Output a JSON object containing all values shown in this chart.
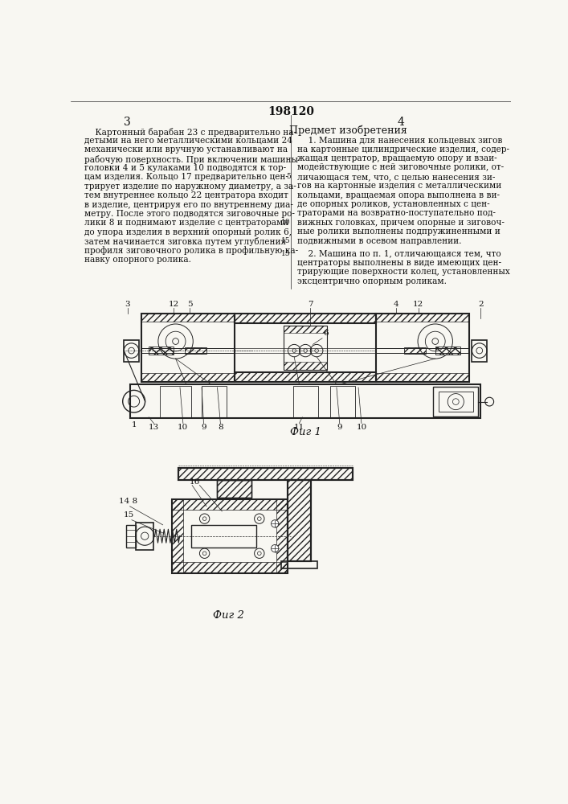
{
  "patent_number": "198120",
  "page_left_num": "3",
  "page_right_num": "4",
  "left_text_lines": [
    "    Картонный барабан 23 с предварительно на-",
    "детыми на него металлическими кольцами 24",
    "механически или вручную устанавливают на",
    "рабочую поверхность. При включении машины",
    "головки 4 и 5 кулаками 10 подводятся к тор-",
    "цам изделия. Кольцо 17 предварительно цен-",
    "трирует изделие по наружному диаметру, а за-",
    "тем внутреннее кольцо 22 центратора входит",
    "в изделие, центрируя его по внутреннему диа-",
    "метру. После этого подводятся зиговочные ро-",
    "лики 8 и поднимают изделие с центраторами",
    "до упора изделия в верхний опорный ролик 6,",
    "затем начинается зиговка путем углубления",
    "профиля зиговочного ролика в профильную ка-",
    "навку опорного ролика."
  ],
  "right_header": "Предмет изобретения",
  "right_text_lines_1": [
    "    1. Машина для нанесения кольцевых зигов",
    "на картонные цилиндрические изделия, содер-",
    "жащая центратор, вращаемую опору и взаи-",
    "модействующие с ней зиговочные ролики, от-",
    "личающася тем, что, с целью нанесения зи-",
    "гов на картонные изделия с металлическими",
    "кольцами, вращаемая опора выполнена в ви-",
    "де опорных роликов, установленных с цен-",
    "траторами на возвратно-поступательно под-",
    "вижных головках, причем опорные и зиговоч-",
    "ные ролики выполнены подпружиненными и",
    "подвижными в осевом направлении."
  ],
  "right_text_lines_2": [
    "    2. Машина по п. 1, отличающаяся тем, что",
    "центраторы выполнены в виде имеющих цен-",
    "трирующие поверхности колец, установленных",
    "эксцентрично опорным роликам."
  ],
  "fig1_caption": "Фиг 1",
  "fig2_caption": "Фиг 2",
  "bg_color": "#f8f7f2",
  "text_color": "#111111",
  "line_color": "#222222"
}
